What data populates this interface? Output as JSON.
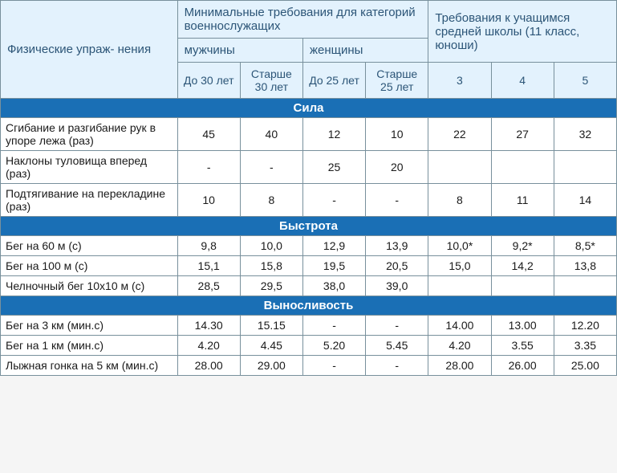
{
  "colors": {
    "header_bg": "#e3f2fd",
    "header_text": "#2c5577",
    "section_bg": "#1a6fb5",
    "section_text": "#ffffff",
    "border": "#78909c",
    "body_text": "#1a1a1a",
    "table_bg": "#ffffff"
  },
  "fontsize": {
    "header": 15,
    "subheader": 14,
    "body": 14,
    "section": 15
  },
  "headers": {
    "exercise": "Физические упраж-\nнения",
    "military": "Минимальные требования для категорий военнослужащих",
    "school": "Требования к учащимся средней школы\n(11 класс, юноши)",
    "men": "мужчины",
    "women": "женщины",
    "men_under30": "До 30 лет",
    "men_over30": "Старше 30 лет",
    "women_under25": "До 25 лет",
    "women_over25": "Старше 25 лет",
    "grade3": "3",
    "grade4": "4",
    "grade5": "5"
  },
  "sections": [
    {
      "title": "Сила",
      "rows": [
        {
          "name": "Сгибание и разгибание рук в упоре лежа (раз)",
          "v": [
            "45",
            "40",
            "12",
            "10",
            "22",
            "27",
            "32"
          ]
        },
        {
          "name": "Наклоны туловища вперед (раз)",
          "v": [
            "-",
            "-",
            "25",
            "20",
            "",
            "",
            ""
          ]
        },
        {
          "name": "Подтягивание на перекладине (раз)",
          "v": [
            "10",
            "8",
            "-",
            "-",
            "8",
            "11",
            "14"
          ]
        }
      ]
    },
    {
      "title": "Быстрота",
      "rows": [
        {
          "name": "Бег на 60 м (с)",
          "v": [
            "9,8",
            "10,0",
            "12,9",
            "13,9",
            "10,0*",
            "9,2*",
            "8,5*"
          ]
        },
        {
          "name": "Бег на 100 м (с)",
          "v": [
            "15,1",
            "15,8",
            "19,5",
            "20,5",
            "15,0",
            "14,2",
            "13,8"
          ]
        },
        {
          "name": "Челночный бег 10х10 м (с)",
          "v": [
            "28,5",
            "29,5",
            "38,0",
            "39,0",
            "",
            "",
            ""
          ]
        }
      ]
    },
    {
      "title": "Выносливость",
      "rows": [
        {
          "name": "Бег на 3 км (мин.с)",
          "v": [
            "14.30",
            "15.15",
            "-",
            "-",
            "14.00",
            "13.00",
            "12.20"
          ]
        },
        {
          "name": "Бег на 1 км (мин.с)",
          "v": [
            "4.20",
            "4.45",
            "5.20",
            "5.45",
            "4.20",
            "3.55",
            "3.35"
          ]
        },
        {
          "name": "Лыжная гонка на 5 км (мин.с)",
          "v": [
            "28.00",
            "29.00",
            "-",
            "-",
            "28.00",
            "26.00",
            "25.00"
          ]
        }
      ]
    }
  ]
}
